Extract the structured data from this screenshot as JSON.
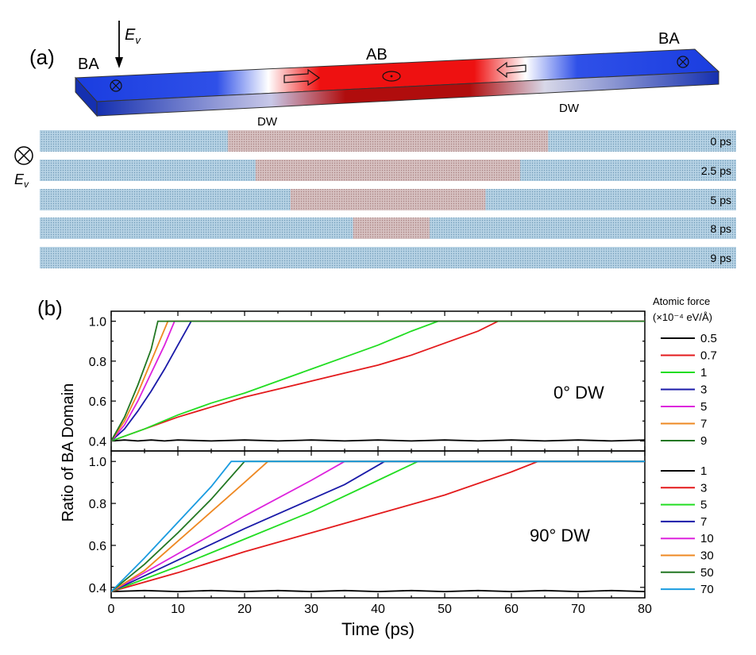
{
  "panel_a": {
    "label": "(a)",
    "field_label": "E",
    "field_sub": "v",
    "domain_left": "BA",
    "domain_mid": "AB",
    "domain_right": "BA",
    "dw_left": "DW",
    "dw_right": "DW",
    "snapshots": [
      {
        "time": "0 ps",
        "red_start": 0.27,
        "red_end": 0.73
      },
      {
        "time": "2.5 ps",
        "red_start": 0.31,
        "red_end": 0.69
      },
      {
        "time": "5 ps",
        "red_start": 0.36,
        "red_end": 0.64
      },
      {
        "time": "8 ps",
        "red_start": 0.45,
        "red_end": 0.56
      },
      {
        "time": "9 ps",
        "red_start": 0.5,
        "red_end": 0.5
      }
    ],
    "colors": {
      "ba": "#1a3de0",
      "ab": "#ee1111",
      "strip": "#a8c8dc",
      "strip_red": "#c8a8a8"
    }
  },
  "panel_b": {
    "label": "(b)"
  },
  "chart_data": [
    {
      "type": "line",
      "annotation": "0° DW",
      "xlim": [
        0,
        80
      ],
      "ylim": [
        0.35,
        1.05
      ],
      "yticks": [
        0.4,
        0.6,
        0.8,
        1.0
      ],
      "ytick_labels": [
        "0.4",
        "0.6",
        "0.8",
        "1.0"
      ],
      "legend_title_1": "Atomic force",
      "legend_title_2": "(×10⁻⁴ eV/Å)",
      "legend_position": "right",
      "series": [
        {
          "name": "0.5",
          "color": "#000000",
          "x": [
            0,
            2,
            4,
            6,
            8,
            10,
            15,
            20,
            25,
            30,
            35,
            40,
            45,
            50,
            55,
            60,
            65,
            70,
            75,
            80
          ],
          "values": [
            0.4,
            0.405,
            0.4,
            0.405,
            0.4,
            0.405,
            0.4,
            0.405,
            0.4,
            0.405,
            0.4,
            0.405,
            0.4,
            0.405,
            0.4,
            0.405,
            0.4,
            0.405,
            0.4,
            0.405
          ]
        },
        {
          "name": "0.7",
          "color": "#e31a1c",
          "x": [
            0,
            5,
            10,
            15,
            20,
            25,
            30,
            35,
            40,
            45,
            50,
            55,
            58,
            80
          ],
          "values": [
            0.4,
            0.46,
            0.52,
            0.57,
            0.62,
            0.66,
            0.7,
            0.74,
            0.78,
            0.83,
            0.89,
            0.95,
            1.0,
            1.0
          ]
        },
        {
          "name": "1",
          "color": "#22dd22",
          "x": [
            0,
            5,
            10,
            15,
            20,
            25,
            30,
            35,
            40,
            45,
            49,
            80
          ],
          "values": [
            0.4,
            0.46,
            0.53,
            0.59,
            0.64,
            0.7,
            0.76,
            0.82,
            0.88,
            0.95,
            1.0,
            1.0
          ]
        },
        {
          "name": "3",
          "color": "#1a1aa8",
          "x": [
            0,
            2,
            4,
            6,
            8,
            10,
            12,
            80
          ],
          "values": [
            0.4,
            0.46,
            0.55,
            0.65,
            0.76,
            0.88,
            1.0,
            1.0
          ]
        },
        {
          "name": "5",
          "color": "#dd22dd",
          "x": [
            0,
            2,
            4,
            6,
            8,
            9.5,
            80
          ],
          "values": [
            0.4,
            0.48,
            0.6,
            0.74,
            0.88,
            1.0,
            1.0
          ]
        },
        {
          "name": "7",
          "color": "#ee8822",
          "x": [
            0,
            2,
            4,
            6,
            8.5,
            80
          ],
          "values": [
            0.4,
            0.5,
            0.64,
            0.8,
            1.0,
            1.0
          ]
        },
        {
          "name": "9",
          "color": "#227722",
          "x": [
            0,
            2,
            4,
            6,
            7,
            80
          ],
          "values": [
            0.4,
            0.52,
            0.68,
            0.86,
            1.0,
            1.0
          ]
        }
      ]
    },
    {
      "type": "line",
      "annotation": "90° DW",
      "xlabel": "Time (ps)",
      "ylabel": "Ratio of BA Domain",
      "xlim": [
        0,
        80
      ],
      "ylim": [
        0.35,
        1.05
      ],
      "xticks": [
        0,
        10,
        20,
        30,
        40,
        50,
        60,
        70,
        80
      ],
      "xtick_labels": [
        "0",
        "10",
        "20",
        "30",
        "40",
        "50",
        "60",
        "70",
        "80"
      ],
      "yticks": [
        0.4,
        0.6,
        0.8,
        1.0
      ],
      "ytick_labels": [
        "0.4",
        "0.6",
        "0.8",
        "1.0"
      ],
      "legend_position": "right",
      "series": [
        {
          "name": "1",
          "color": "#000000",
          "x": [
            0,
            5,
            10,
            15,
            20,
            25,
            30,
            35,
            40,
            45,
            50,
            55,
            60,
            65,
            70,
            75,
            80
          ],
          "values": [
            0.38,
            0.385,
            0.38,
            0.385,
            0.38,
            0.385,
            0.38,
            0.385,
            0.38,
            0.385,
            0.38,
            0.385,
            0.38,
            0.385,
            0.38,
            0.385,
            0.38
          ]
        },
        {
          "name": "3",
          "color": "#e31a1c",
          "x": [
            0,
            10,
            20,
            30,
            40,
            50,
            60,
            64,
            80
          ],
          "values": [
            0.38,
            0.47,
            0.57,
            0.66,
            0.75,
            0.84,
            0.95,
            1.0,
            1.0
          ]
        },
        {
          "name": "5",
          "color": "#22dd22",
          "x": [
            0,
            10,
            20,
            30,
            40,
            46,
            80
          ],
          "values": [
            0.38,
            0.5,
            0.63,
            0.76,
            0.91,
            1.0,
            1.0
          ]
        },
        {
          "name": "7",
          "color": "#1a1aa8",
          "x": [
            0,
            10,
            20,
            30,
            35,
            41,
            80
          ],
          "values": [
            0.38,
            0.53,
            0.68,
            0.82,
            0.89,
            1.0,
            1.0
          ]
        },
        {
          "name": "10",
          "color": "#dd22dd",
          "x": [
            0,
            10,
            20,
            30,
            35,
            80
          ],
          "values": [
            0.38,
            0.56,
            0.74,
            0.91,
            1.0,
            1.0
          ]
        },
        {
          "name": "30",
          "color": "#ee8822",
          "x": [
            0,
            5,
            10,
            15,
            20,
            23.5,
            80
          ],
          "values": [
            0.38,
            0.48,
            0.62,
            0.76,
            0.9,
            1.0,
            1.0
          ]
        },
        {
          "name": "50",
          "color": "#227722",
          "x": [
            0,
            5,
            10,
            15,
            20,
            80
          ],
          "values": [
            0.38,
            0.51,
            0.66,
            0.82,
            1.0,
            1.0
          ]
        },
        {
          "name": "70",
          "color": "#1a9be0",
          "x": [
            0,
            5,
            10,
            15,
            18,
            80
          ],
          "values": [
            0.38,
            0.54,
            0.71,
            0.88,
            1.0,
            1.0
          ]
        }
      ]
    }
  ]
}
